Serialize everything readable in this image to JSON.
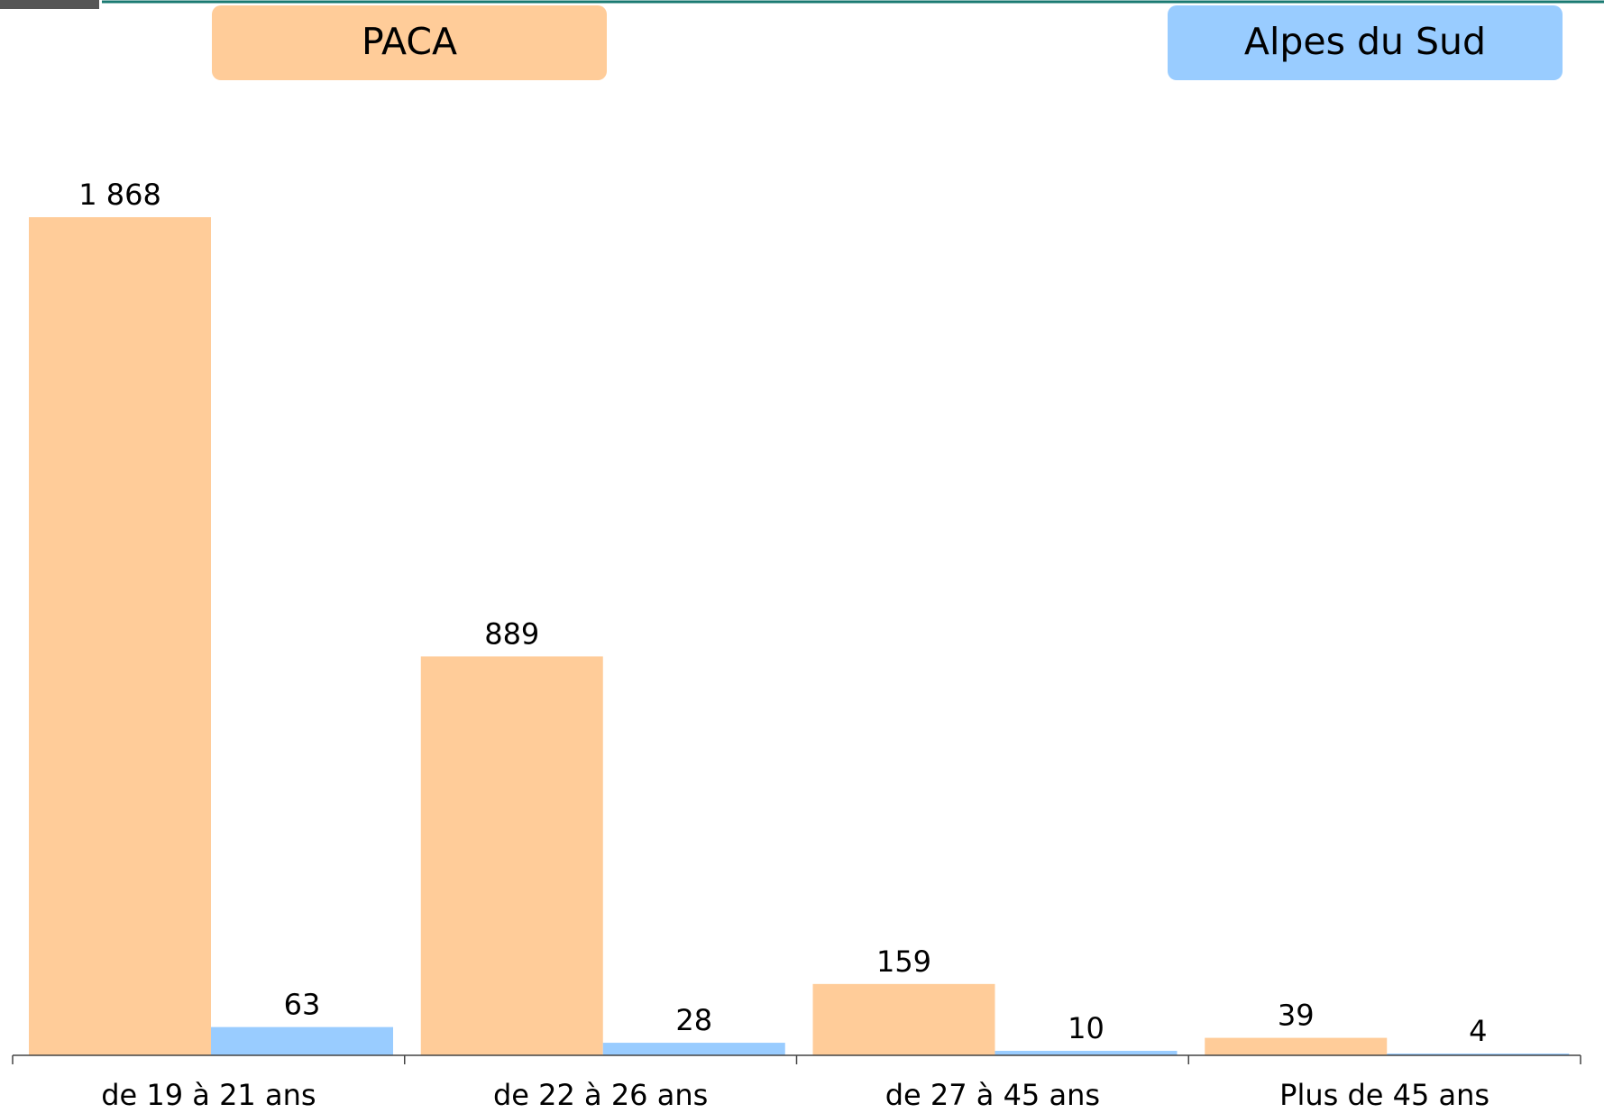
{
  "chart_data": {
    "type": "bar",
    "categories": [
      "de 19 à 21 ans",
      "de 22 à 26 ans",
      "de 27 à 45 ans",
      "Plus de 45 ans"
    ],
    "series": [
      {
        "name": "PACA",
        "color": "#ffcc99",
        "values": [
          1868,
          889,
          159,
          39
        ],
        "value_labels": [
          "1 868",
          "889",
          "159",
          "39"
        ]
      },
      {
        "name": "Alpes du Sud",
        "color": "#99ccff",
        "values": [
          63,
          28,
          10,
          4
        ]
      }
    ]
  }
}
